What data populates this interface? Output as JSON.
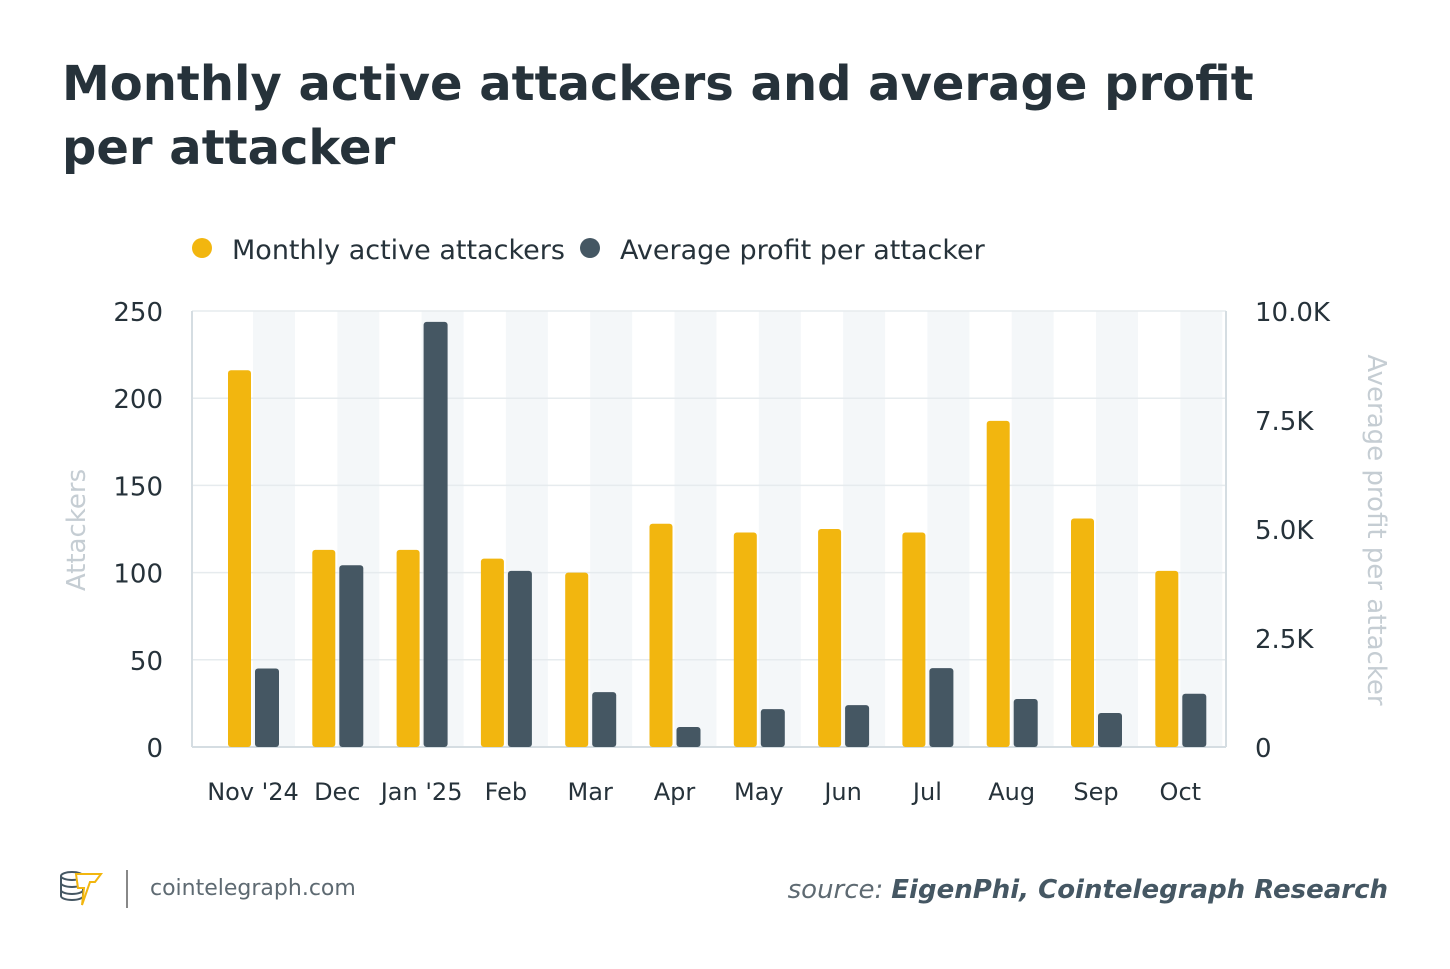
{
  "title_line1": "Monthly active attackers and average profit",
  "title_line2": "per attacker",
  "footer": {
    "site": "cointelegraph.com",
    "source_prefix": "source:",
    "source": "EigenPhi, Cointelegraph Research"
  },
  "colors": {
    "attackers": "#F2B60F",
    "profit": "#455763",
    "title": "#26323A",
    "axis_label": "#C5CDD3",
    "band": "#F4F7F9"
  },
  "chart_data": {
    "type": "bar",
    "title": "Monthly active attackers and average profit per attacker",
    "categories": [
      "Nov '24",
      "Dec",
      "Jan '25",
      "Feb",
      "Mar",
      "Apr",
      "May",
      "Jun",
      "Jul",
      "Aug",
      "Sep",
      "Oct"
    ],
    "series": [
      {
        "name": "Monthly active attackers",
        "axis": "left",
        "values": [
          216,
          113,
          113,
          108,
          100,
          128,
          123,
          125,
          123,
          187,
          131,
          101
        ]
      },
      {
        "name": "Average profit per attacker",
        "axis": "right",
        "values": [
          1800,
          4170,
          9750,
          4040,
          1260,
          460,
          870,
          960,
          1810,
          1100,
          780,
          1220
        ]
      }
    ],
    "ylabel": "Attackers",
    "ylabel_right": "Average profit per attacker",
    "ylim": [
      0,
      250
    ],
    "ylim_right": [
      0,
      10000
    ],
    "yticks": [
      "0",
      "50",
      "100",
      "150",
      "200",
      "250"
    ],
    "yticks_right": [
      "0",
      "2.5K",
      "5.0K",
      "7.5K",
      "10.0K"
    ],
    "grid": true,
    "legend_placement": "top-left"
  }
}
